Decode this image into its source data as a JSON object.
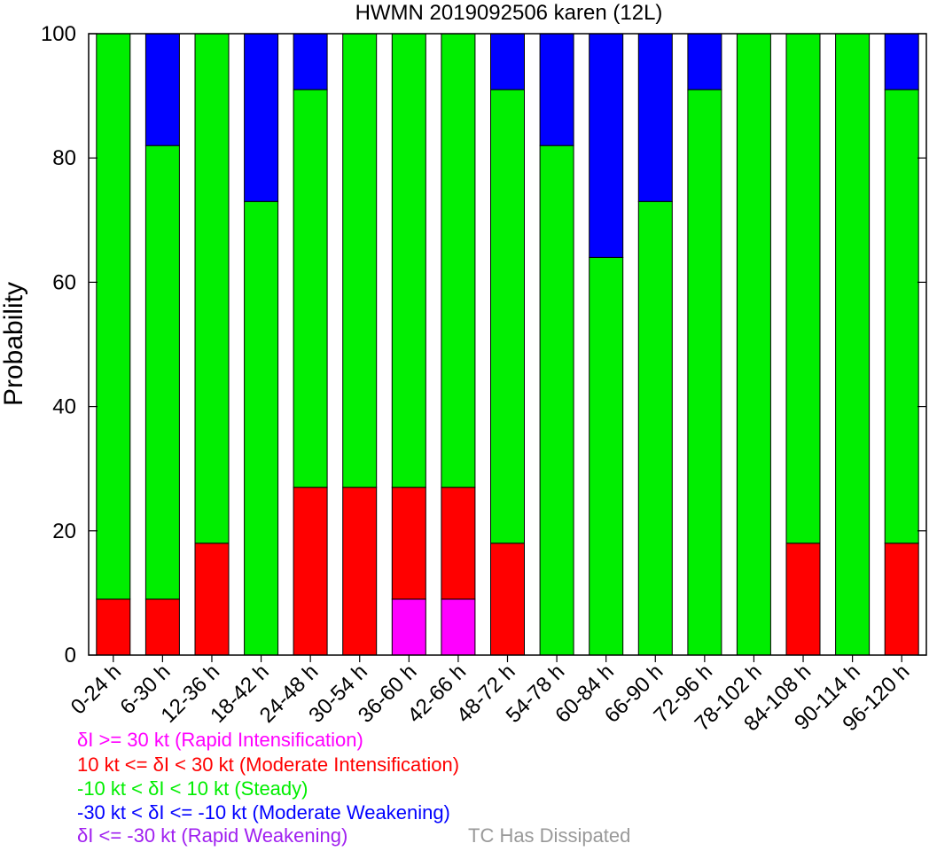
{
  "chart_data": {
    "type": "bar",
    "stacked": true,
    "title": "HWMN 2019092506 karen (12L)",
    "ylabel": "Probability",
    "xlabel": "",
    "ylim": [
      0,
      100
    ],
    "yticks": [
      0,
      20,
      40,
      60,
      80,
      100
    ],
    "categories": [
      "0-24 h",
      "6-30 h",
      "12-36 h",
      "18-42 h",
      "24-48 h",
      "30-54 h",
      "36-60 h",
      "42-66 h",
      "48-72 h",
      "54-78 h",
      "60-84 h",
      "66-90 h",
      "72-96 h",
      "78-102 h",
      "84-108 h",
      "90-114 h",
      "96-120 h"
    ],
    "series": [
      {
        "name": "Rapid Intensification",
        "color": "#ff00ff",
        "values": [
          0,
          0,
          0,
          0,
          0,
          0,
          9,
          9,
          0,
          0,
          0,
          0,
          0,
          0,
          0,
          0,
          0
        ]
      },
      {
        "name": "Moderate Intensification",
        "color": "#ff0000",
        "values": [
          9,
          9,
          18,
          0,
          27,
          27,
          18,
          18,
          18,
          0,
          0,
          0,
          0,
          0,
          18,
          0,
          18
        ]
      },
      {
        "name": "Steady",
        "color": "#00ee00",
        "values": [
          91,
          73,
          82,
          73,
          64,
          73,
          73,
          73,
          73,
          82,
          64,
          73,
          91,
          100,
          82,
          100,
          73
        ]
      },
      {
        "name": "Moderate Weakening",
        "color": "#0000ff",
        "values": [
          0,
          18,
          0,
          27,
          9,
          0,
          0,
          0,
          9,
          18,
          36,
          27,
          9,
          0,
          0,
          0,
          9
        ]
      },
      {
        "name": "Rapid Weakening",
        "color": "#a020f0",
        "values": [
          0,
          0,
          0,
          0,
          0,
          0,
          0,
          0,
          0,
          0,
          0,
          0,
          0,
          0,
          0,
          0,
          0
        ]
      }
    ]
  },
  "legend": {
    "ri": {
      "label": "δI >= 30 kt (Rapid Intensification)",
      "color": "#ff00ff"
    },
    "mi": {
      "label": "10 kt <= δI < 30 kt (Moderate Intensification)",
      "color": "#ff0000"
    },
    "steady": {
      "label": "-10 kt < δI < 10 kt (Steady)",
      "color": "#00ee00"
    },
    "mw": {
      "label": "-30 kt < δI <= -10 kt (Moderate Weakening)",
      "color": "#0000ff"
    },
    "rw": {
      "label": "δI <= -30 kt (Rapid Weakening)",
      "color": "#a020f0"
    },
    "dissipated": {
      "label": "TC Has Dissipated",
      "color": "#999999"
    }
  }
}
